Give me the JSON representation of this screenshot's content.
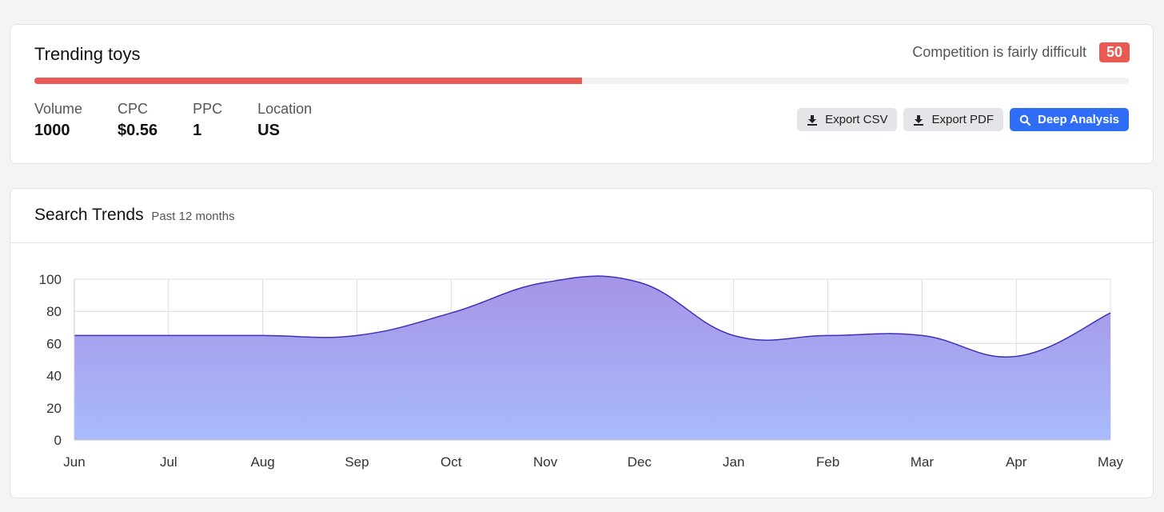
{
  "keyword": {
    "title": "Trending toys",
    "competition_label": "Competition is fairly difficult",
    "competition_score": "50",
    "competition_fraction": 0.5,
    "metrics": [
      {
        "label": "Volume",
        "value": "1000"
      },
      {
        "label": "CPC",
        "value": "$0.56"
      },
      {
        "label": "PPC",
        "value": "1"
      },
      {
        "label": "Location",
        "value": "US"
      }
    ],
    "actions": {
      "export_csv": "Export CSV",
      "export_pdf": "Export PDF",
      "deep_analysis": "Deep Analysis"
    }
  },
  "trends": {
    "title": "Search Trends",
    "subtitle": "Past 12 months"
  },
  "colors": {
    "accent_red": "#ea5a52",
    "primary_blue": "#2f6df6",
    "line": "#3f2fb8",
    "fill_top": "#a594e6",
    "fill_bottom": "#a9bbfb"
  },
  "icons": [
    "download-icon",
    "search-icon"
  ],
  "chart_data": {
    "type": "area",
    "categories": [
      "Jun",
      "Jul",
      "Aug",
      "Sep",
      "Oct",
      "Nov",
      "Dec",
      "Jan",
      "Feb",
      "Mar",
      "Apr",
      "May"
    ],
    "series": [
      {
        "values": [
          65,
          65,
          65,
          65,
          79,
          98,
          98,
          65,
          65,
          65,
          52,
          79
        ]
      }
    ],
    "ylim": [
      0,
      100
    ],
    "yticks": [
      0,
      20,
      40,
      60,
      80,
      100
    ],
    "grid": true,
    "legend": "none"
  }
}
